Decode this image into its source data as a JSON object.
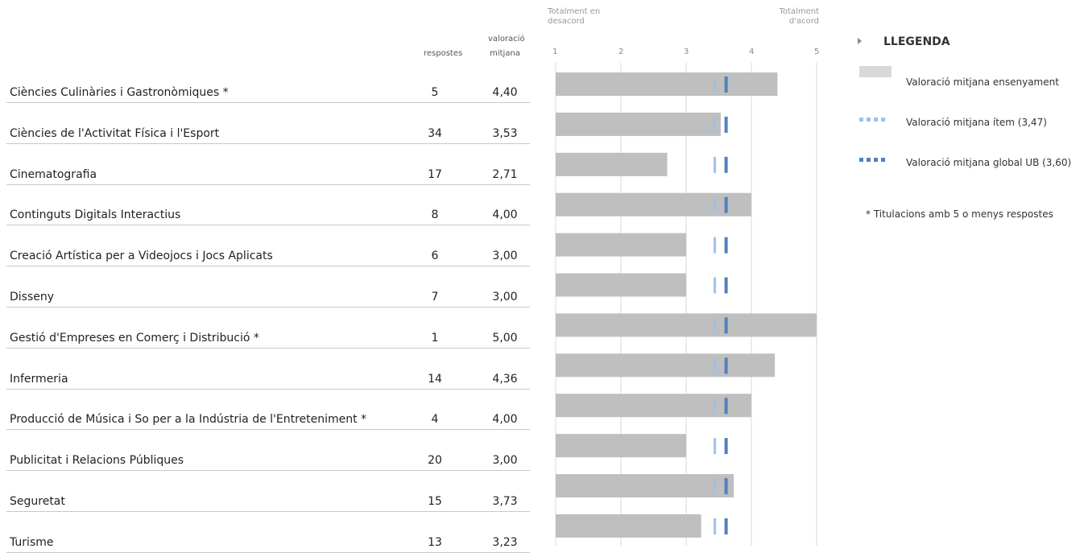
{
  "headers": {
    "respostes": "respostes",
    "valoracio_line1": "valoració",
    "valoracio_line2": "mitjana",
    "axis_left_line1": "Totalment en",
    "axis_left_line2": "desacord",
    "axis_right_line1": "Totalment",
    "axis_right_line2": "d'acord"
  },
  "rows": [
    {
      "label": "Ciències Culinàries i Gastronòmiques *",
      "respostes": "5",
      "valoracio": "4,40"
    },
    {
      "label": "Ciències de l'Activitat Física i l'Esport",
      "respostes": "34",
      "valoracio": "3,53"
    },
    {
      "label": "Cinematografia",
      "respostes": "17",
      "valoracio": "2,71"
    },
    {
      "label": "Continguts Digitals Interactius",
      "respostes": "8",
      "valoracio": "4,00"
    },
    {
      "label": "Creació Artística per a Videojocs i Jocs Aplicats",
      "respostes": "6",
      "valoracio": "3,00"
    },
    {
      "label": "Disseny",
      "respostes": "7",
      "valoracio": "3,00"
    },
    {
      "label": "Gestió d'Empreses en Comerç i Distribució *",
      "respostes": "1",
      "valoracio": "5,00"
    },
    {
      "label": "Infermeria",
      "respostes": "14",
      "valoracio": "4,36"
    },
    {
      "label": "Producció de Música i So per a la Indústria de l'Entreteniment *",
      "respostes": "4",
      "valoracio": "4,00"
    },
    {
      "label": "Publicitat i Relacions Públiques",
      "respostes": "20",
      "valoracio": "3,00"
    },
    {
      "label": "Seguretat",
      "respostes": "15",
      "valoracio": "3,73"
    },
    {
      "label": "Turisme",
      "respostes": "13",
      "valoracio": "3,23"
    }
  ],
  "chart_data": {
    "type": "bar",
    "orientation": "horizontal",
    "categories": [
      "Ciències Culinàries i Gastronòmiques *",
      "Ciències de l'Activitat Física i l'Esport",
      "Cinematografia",
      "Continguts Digitals Interactius",
      "Creació Artística per a Videojocs i Jocs Aplicats",
      "Disseny",
      "Gestió d'Empreses en Comerç i Distribució *",
      "Infermeria",
      "Producció de Música i So per a la Indústria de l'Entreteniment *",
      "Publicitat i Relacions Públiques",
      "Seguretat",
      "Turisme"
    ],
    "series": [
      {
        "name": "Valoració mitjana ensenyament",
        "values": [
          4.4,
          3.53,
          2.71,
          4.0,
          3.0,
          3.0,
          5.0,
          4.36,
          4.0,
          3.0,
          3.73,
          3.23
        ],
        "color": "#bfbfbf"
      }
    ],
    "reference_lines": [
      {
        "name": "Valoració mitjana ítem (3,47)",
        "value": 3.47,
        "color": "#9dc3e6"
      },
      {
        "name": "Valoració mitjana global UB (3,60)",
        "value": 3.6,
        "color": "#4f81bd"
      }
    ],
    "xlim": [
      1,
      5
    ],
    "xticks": [
      "1",
      "2",
      "3",
      "4",
      "5"
    ],
    "grid": true
  },
  "legend": {
    "title": "LLEGENDA",
    "items": [
      {
        "label": "Valoració mitjana ensenyament",
        "color": "#d9d9d9"
      },
      {
        "label": "Valoració mitjana ítem (3,47)",
        "color": "#9dc3e6"
      },
      {
        "label": "Valoració mitjana global UB (3,60)",
        "color": "#4f81bd"
      }
    ],
    "footnote": "* Titulacions amb 5 o menys respostes"
  }
}
